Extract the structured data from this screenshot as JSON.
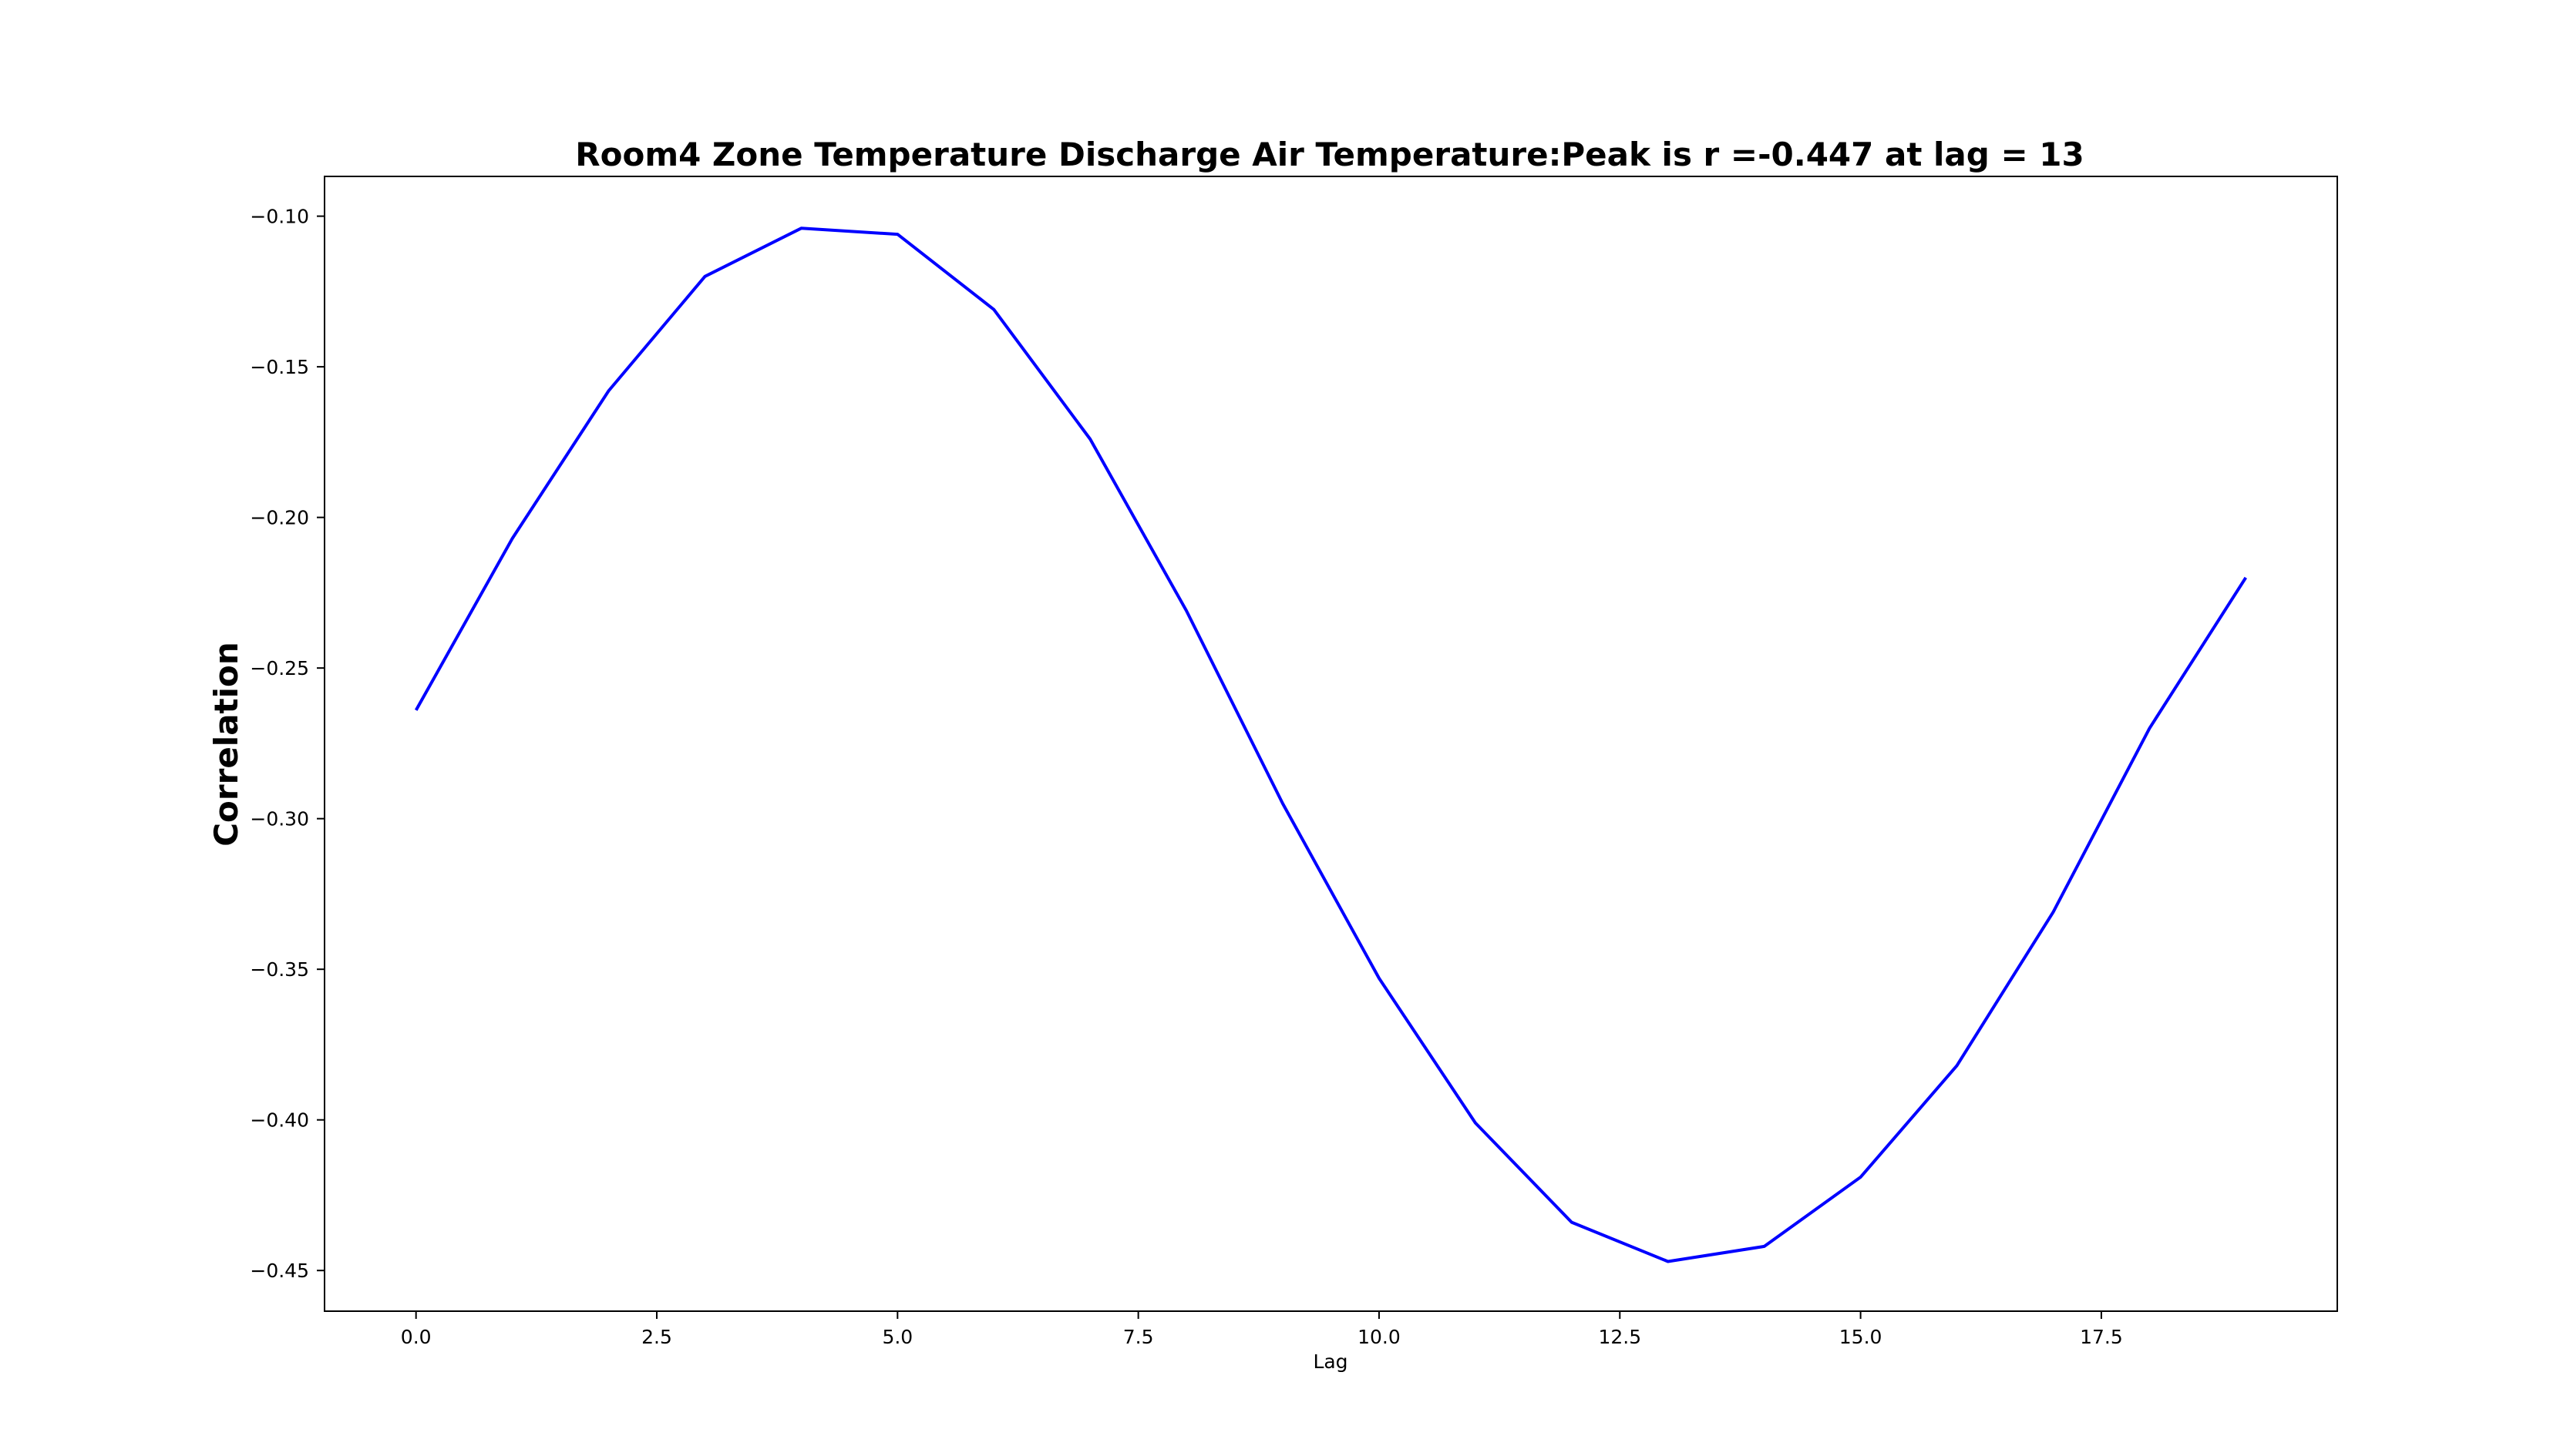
{
  "chart_data": {
    "type": "line",
    "title": "Room4 Zone Temperature Discharge Air Temperature:Peak is r =-0.447 at lag = 13",
    "xlabel": "Lag",
    "ylabel": "Correlation",
    "xlim": [
      -0.95,
      19.95
    ],
    "ylim": [
      -0.4635,
      -0.0868
    ],
    "grid": false,
    "legend": "none",
    "x_ticks": [
      0.0,
      2.5,
      5.0,
      7.5,
      10.0,
      12.5,
      15.0,
      17.5
    ],
    "x_tick_labels": [
      "0.0",
      "2.5",
      "5.0",
      "7.5",
      "10.0",
      "12.5",
      "15.0",
      "17.5"
    ],
    "y_ticks": [
      -0.1,
      -0.15,
      -0.2,
      -0.25,
      -0.3,
      -0.35,
      -0.4,
      -0.45
    ],
    "y_tick_labels": [
      "−0.10",
      "−0.15",
      "−0.20",
      "−0.25",
      "−0.30",
      "−0.35",
      "−0.40",
      "−0.45"
    ],
    "series": [
      {
        "color": "#0000ff",
        "x": [
          0,
          1,
          2,
          3,
          4,
          5,
          6,
          7,
          8,
          9,
          10,
          11,
          12,
          13,
          14,
          15,
          16,
          17,
          18,
          19
        ],
        "y": [
          -0.264,
          -0.207,
          -0.158,
          -0.12,
          -0.104,
          -0.106,
          -0.131,
          -0.174,
          -0.231,
          -0.295,
          -0.353,
          -0.401,
          -0.434,
          -0.447,
          -0.442,
          -0.419,
          -0.382,
          -0.331,
          -0.27,
          -0.22
        ]
      }
    ]
  }
}
